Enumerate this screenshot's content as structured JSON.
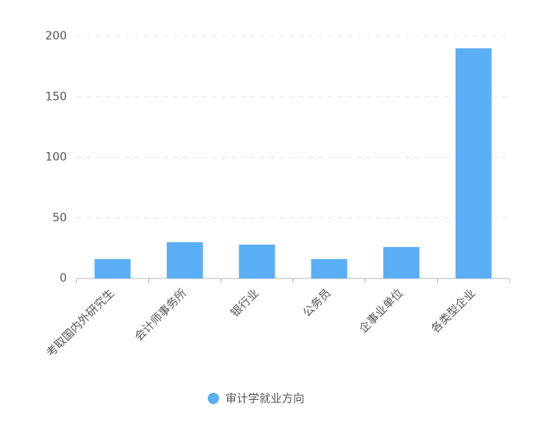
{
  "chart_data": {
    "type": "bar",
    "categories": [
      "考取国内外研究生",
      "会计师事务所",
      "银行业",
      "公务员",
      "企事业单位",
      "各类型企业"
    ],
    "series": [
      {
        "name": "审计学就业方向",
        "color": "#5aaef5",
        "values": [
          16,
          30,
          28,
          16,
          26,
          190
        ]
      }
    ],
    "ylim": [
      0,
      200
    ],
    "yticks": [
      0,
      50,
      100,
      150,
      200
    ],
    "grid": true
  }
}
